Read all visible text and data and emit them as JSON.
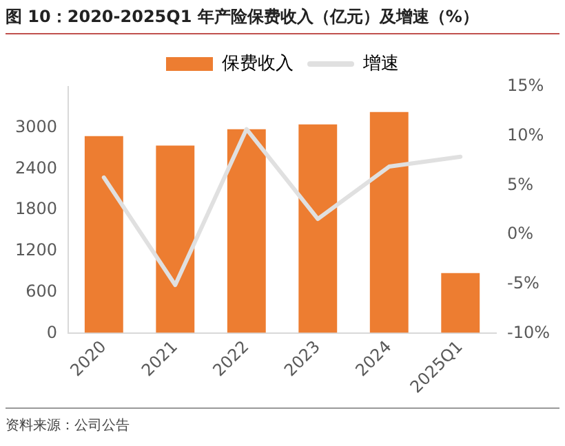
{
  "chart_data": {
    "type": "bar",
    "title": "图 10：2020-2025Q1 年产险保费收入（亿元）及增速（%）",
    "categories": [
      "2020",
      "2021",
      "2022",
      "2023",
      "2024",
      "2025Q1"
    ],
    "series": [
      {
        "name": "保费收入",
        "color": "#ed7d31",
        "values": [
          2880,
          2740,
          2980,
          3050,
          3230,
          880
        ]
      },
      {
        "name": "增速",
        "type": "line",
        "axis": "y2",
        "color": "#e0e0e0",
        "values": [
          5.8,
          -5.1,
          10.7,
          1.6,
          6.9,
          7.9
        ]
      }
    ],
    "ylim": [
      0,
      3600
    ],
    "yticks": [
      0,
      600,
      1200,
      1800,
      2400,
      3000
    ],
    "y2lim": [
      -10,
      15
    ],
    "y2ticks": [
      {
        "value": -10,
        "label": "-10%"
      },
      {
        "value": -5,
        "label": "-5%"
      },
      {
        "value": 0,
        "label": "0%"
      },
      {
        "value": 5,
        "label": "5%"
      },
      {
        "value": 10,
        "label": "10%"
      },
      {
        "value": 15,
        "label": "15%"
      }
    ],
    "legend": "top",
    "grid": false,
    "marker": "none",
    "line_style": "solid",
    "annotations": [
      "资料来源：公司公告"
    ]
  }
}
